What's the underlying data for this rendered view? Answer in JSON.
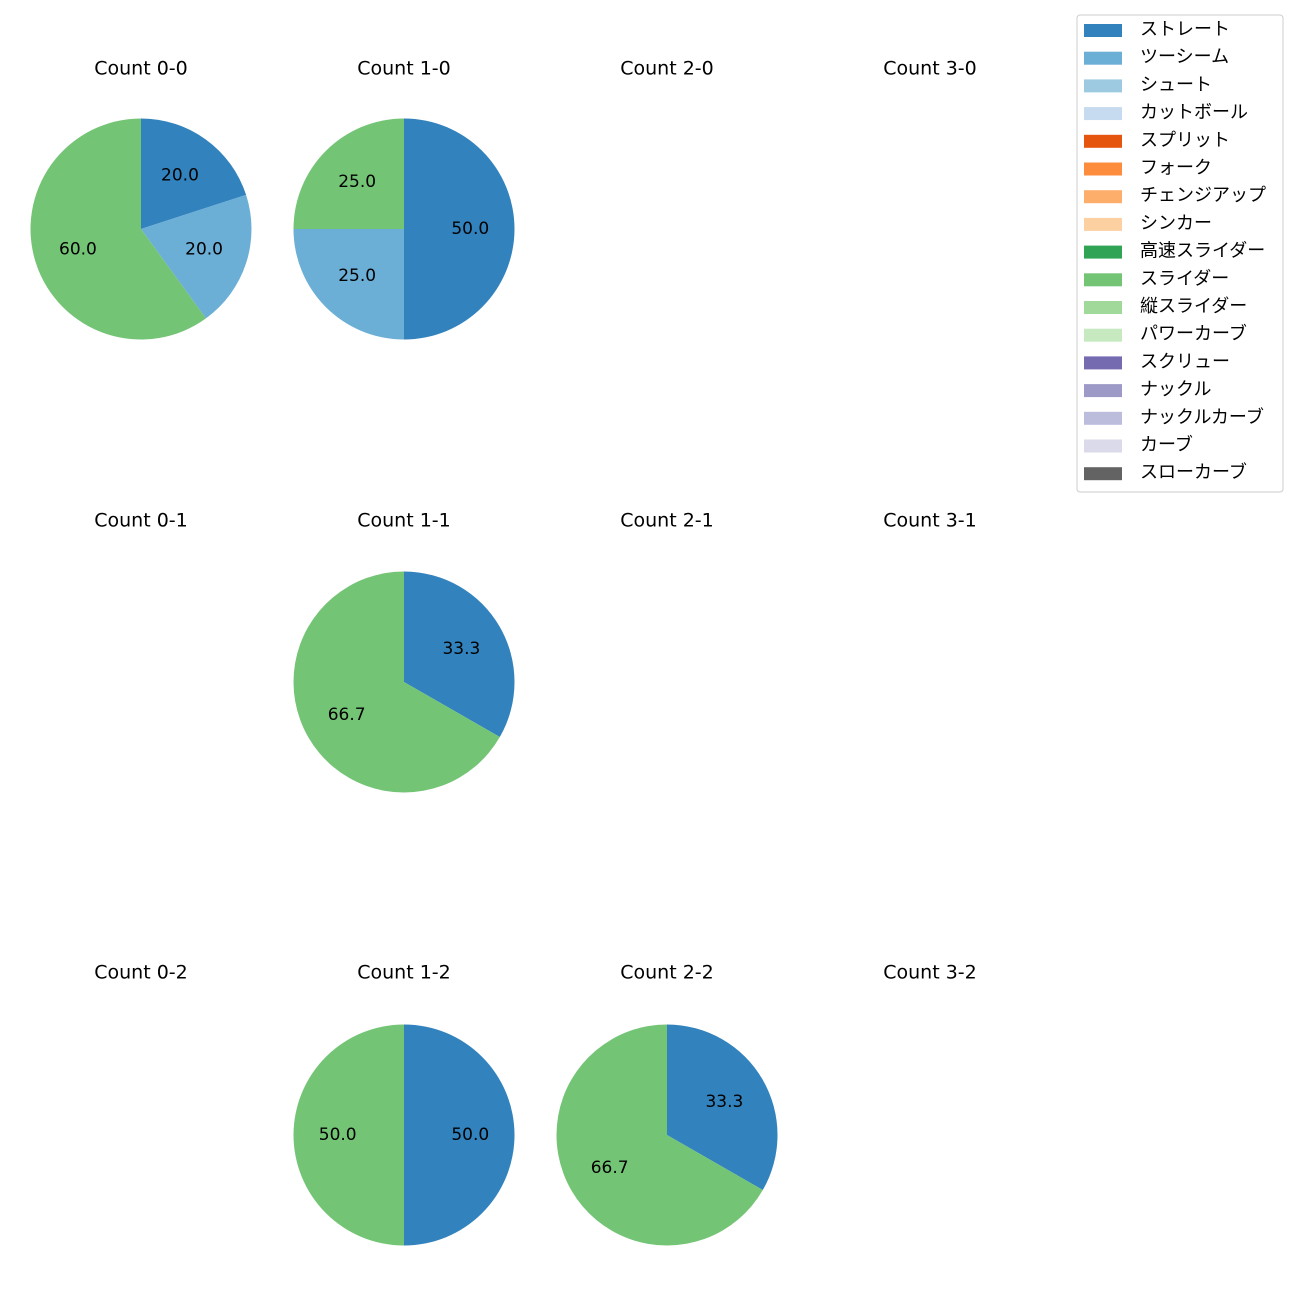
{
  "chart_data": {
    "type": "pie",
    "start_angle_deg": 90,
    "direction": "clockwise",
    "autopct_format": "%.1f",
    "legend": {
      "placement": "top-right",
      "entries": [
        {
          "label": "ストレート",
          "color": "#3182bd"
        },
        {
          "label": "ツーシーム",
          "color": "#6baed6"
        },
        {
          "label": "シュート",
          "color": "#9ecae1"
        },
        {
          "label": "カットボール",
          "color": "#c6dbef"
        },
        {
          "label": "スプリット",
          "color": "#e6550d"
        },
        {
          "label": "フォーク",
          "color": "#fd8d3c"
        },
        {
          "label": "チェンジアップ",
          "color": "#fdae6b"
        },
        {
          "label": "シンカー",
          "color": "#fdd0a2"
        },
        {
          "label": "高速スライダー",
          "color": "#31a354"
        },
        {
          "label": "スライダー",
          "color": "#74c476"
        },
        {
          "label": "縦スライダー",
          "color": "#a1d99b"
        },
        {
          "label": "パワーカーブ",
          "color": "#c7e9c0"
        },
        {
          "label": "スクリュー",
          "color": "#756bb1"
        },
        {
          "label": "ナックル",
          "color": "#9e9ac8"
        },
        {
          "label": "ナックルカーブ",
          "color": "#bcbddc"
        },
        {
          "label": "カーブ",
          "color": "#dadaeb"
        },
        {
          "label": "スローカーブ",
          "color": "#636363"
        }
      ]
    },
    "panels": [
      {
        "title": "Count 0-0",
        "slices": [
          {
            "pitch": "ストレート",
            "value": 20.0,
            "label": "20.0"
          },
          {
            "pitch": "ツーシーム",
            "value": 20.0,
            "label": "20.0"
          },
          {
            "pitch": "スライダー",
            "value": 60.0,
            "label": "60.0"
          }
        ]
      },
      {
        "title": "Count 1-0",
        "slices": [
          {
            "pitch": "ストレート",
            "value": 50.0,
            "label": "50.0"
          },
          {
            "pitch": "ツーシーム",
            "value": 25.0,
            "label": "25.0"
          },
          {
            "pitch": "スライダー",
            "value": 25.0,
            "label": "25.0"
          }
        ]
      },
      {
        "title": "Count 2-0",
        "slices": []
      },
      {
        "title": "Count 3-0",
        "slices": []
      },
      {
        "title": "Count 0-1",
        "slices": []
      },
      {
        "title": "Count 1-1",
        "slices": [
          {
            "pitch": "ストレート",
            "value": 33.3,
            "label": "33.3"
          },
          {
            "pitch": "スライダー",
            "value": 66.7,
            "label": "66.7"
          }
        ]
      },
      {
        "title": "Count 2-1",
        "slices": []
      },
      {
        "title": "Count 3-1",
        "slices": []
      },
      {
        "title": "Count 0-2",
        "slices": []
      },
      {
        "title": "Count 1-2",
        "slices": [
          {
            "pitch": "ストレート",
            "value": 50.0,
            "label": "50.0"
          },
          {
            "pitch": "スライダー",
            "value": 50.0,
            "label": "50.0"
          }
        ]
      },
      {
        "title": "Count 2-2",
        "slices": [
          {
            "pitch": "ストレート",
            "value": 33.3,
            "label": "33.3"
          },
          {
            "pitch": "スライダー",
            "value": 66.7,
            "label": "66.7"
          }
        ]
      },
      {
        "title": "Count 3-2",
        "slices": []
      }
    ]
  }
}
